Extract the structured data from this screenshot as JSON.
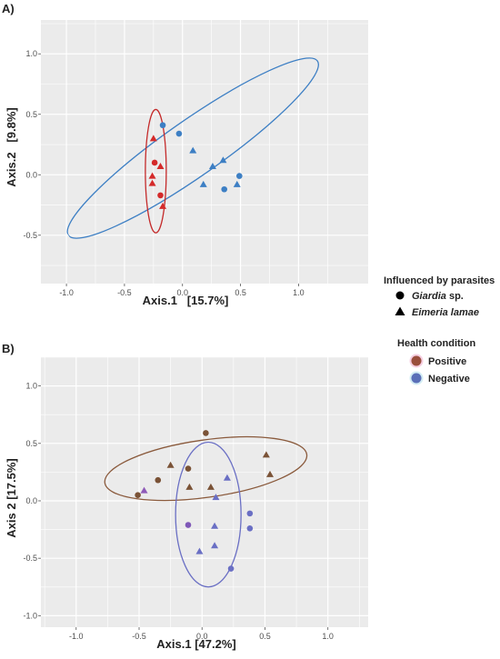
{
  "chart_data": [
    {
      "type": "scatter",
      "panel_label": "A)",
      "xlabel": "Axis.1   [15.7%]",
      "ylabel": "Axis.2   [9.8%]",
      "xlim": [
        -1.22,
        1.6
      ],
      "ylim": [
        -0.9,
        1.28
      ],
      "xticks": [
        -1.0,
        -0.5,
        0.0,
        0.5,
        1.0
      ],
      "yticks": [
        -0.5,
        0.0,
        0.5,
        1.0
      ],
      "xtick_labels": [
        "-1.0",
        "-0.5",
        "0.0",
        "0.5",
        "1.0"
      ],
      "ytick_labels": [
        "-0.5",
        "0.0",
        "0.5",
        "1.0"
      ],
      "grid": true,
      "points": [
        {
          "x": -0.17,
          "y": 0.41,
          "shape": "circle",
          "color": "#3d7fc4"
        },
        {
          "x": -0.03,
          "y": 0.34,
          "shape": "circle",
          "color": "#3d7fc4"
        },
        {
          "x": 0.09,
          "y": 0.2,
          "shape": "triangle",
          "color": "#3d7fc4"
        },
        {
          "x": 0.35,
          "y": 0.12,
          "shape": "triangle",
          "color": "#3d7fc4"
        },
        {
          "x": 0.26,
          "y": 0.07,
          "shape": "triangle",
          "color": "#3d7fc4"
        },
        {
          "x": 0.49,
          "y": -0.01,
          "shape": "circle",
          "color": "#3d7fc4"
        },
        {
          "x": 0.47,
          "y": -0.08,
          "shape": "triangle",
          "color": "#3d7fc4"
        },
        {
          "x": 0.18,
          "y": -0.08,
          "shape": "triangle",
          "color": "#3d7fc4"
        },
        {
          "x": 0.36,
          "y": -0.12,
          "shape": "circle",
          "color": "#3d7fc4"
        },
        {
          "x": -0.25,
          "y": 0.3,
          "shape": "triangle",
          "color": "#d42a2a"
        },
        {
          "x": -0.24,
          "y": 0.1,
          "shape": "circle",
          "color": "#d42a2a"
        },
        {
          "x": -0.19,
          "y": 0.07,
          "shape": "triangle",
          "color": "#d42a2a"
        },
        {
          "x": -0.26,
          "y": -0.01,
          "shape": "triangle",
          "color": "#d42a2a"
        },
        {
          "x": -0.26,
          "y": -0.07,
          "shape": "triangle",
          "color": "#d42a2a"
        },
        {
          "x": -0.19,
          "y": -0.17,
          "shape": "circle",
          "color": "#d42a2a"
        },
        {
          "x": -0.17,
          "y": -0.26,
          "shape": "triangle",
          "color": "#d42a2a"
        }
      ],
      "ellipses": [
        {
          "cx": 0.09,
          "cy": 0.22,
          "rx": 1.31,
          "ry": 0.23,
          "angle_deg": -35,
          "color": "#3d7fc4"
        },
        {
          "cx": -0.23,
          "cy": 0.03,
          "rx": 0.09,
          "ry": 0.51,
          "angle_deg": 0,
          "color": "#c42a2a"
        }
      ]
    },
    {
      "type": "scatter",
      "panel_label": "B)",
      "xlabel": "Axis.1 [47.2%]",
      "ylabel": "Axis 2 [17.5%]",
      "xlim": [
        -1.28,
        1.32
      ],
      "ylim": [
        -1.1,
        1.25
      ],
      "xticks": [
        -1.0,
        -0.5,
        0.0,
        0.5,
        1.0
      ],
      "yticks": [
        -1.0,
        -0.5,
        0.0,
        0.5,
        1.0
      ],
      "xtick_labels": [
        "-1.0",
        "-0.5",
        "0.0",
        "0.5",
        "1.0"
      ],
      "ytick_labels": [
        "-1.0",
        "-0.5",
        "0.0",
        "0.5",
        "1.0"
      ],
      "grid": true,
      "points": [
        {
          "x": 0.03,
          "y": 0.59,
          "shape": "circle",
          "color": "#7a5236"
        },
        {
          "x": 0.51,
          "y": 0.4,
          "shape": "triangle",
          "color": "#7a5236"
        },
        {
          "x": -0.25,
          "y": 0.31,
          "shape": "triangle",
          "color": "#7a5236"
        },
        {
          "x": -0.11,
          "y": 0.28,
          "shape": "circle",
          "color": "#7a5236"
        },
        {
          "x": 0.54,
          "y": 0.23,
          "shape": "triangle",
          "color": "#7a5236"
        },
        {
          "x": -0.35,
          "y": 0.18,
          "shape": "circle",
          "color": "#7a5236"
        },
        {
          "x": -0.1,
          "y": 0.12,
          "shape": "triangle",
          "color": "#7a5236"
        },
        {
          "x": 0.07,
          "y": 0.12,
          "shape": "triangle",
          "color": "#7a5236"
        },
        {
          "x": -0.51,
          "y": 0.05,
          "shape": "circle",
          "color": "#7a5236"
        },
        {
          "x": -0.46,
          "y": 0.09,
          "shape": "triangle",
          "color": "#8e5ab8"
        },
        {
          "x": 0.2,
          "y": 0.2,
          "shape": "triangle",
          "color": "#6a6fc4"
        },
        {
          "x": 0.11,
          "y": 0.03,
          "shape": "triangle",
          "color": "#6a6fc4"
        },
        {
          "x": 0.38,
          "y": -0.11,
          "shape": "circle",
          "color": "#6a6fc4"
        },
        {
          "x": -0.11,
          "y": -0.21,
          "shape": "circle",
          "color": "#7f58b8"
        },
        {
          "x": 0.1,
          "y": -0.22,
          "shape": "triangle",
          "color": "#6a6fc4"
        },
        {
          "x": 0.38,
          "y": -0.24,
          "shape": "circle",
          "color": "#6a6fc4"
        },
        {
          "x": 0.1,
          "y": -0.39,
          "shape": "triangle",
          "color": "#6a6fc4"
        },
        {
          "x": -0.02,
          "y": -0.44,
          "shape": "triangle",
          "color": "#6a6fc4"
        },
        {
          "x": 0.23,
          "y": -0.59,
          "shape": "circle",
          "color": "#6a6fc4"
        }
      ],
      "ellipses": [
        {
          "cx": 0.03,
          "cy": 0.28,
          "rx": 0.81,
          "ry": 0.25,
          "angle_deg": -8,
          "color": "#8a5a3c"
        },
        {
          "cx": 0.05,
          "cy": -0.12,
          "rx": 0.26,
          "ry": 0.63,
          "angle_deg": 0,
          "color": "#6a6fc4"
        }
      ]
    }
  ],
  "legends": {
    "parasites": {
      "title": "Influenced by parasites",
      "items": [
        {
          "label_italic": "Giardia",
          "label_rest": " sp.",
          "shape": "circle"
        },
        {
          "label_italic": "Eimeria lamae",
          "label_rest": "",
          "shape": "triangle"
        }
      ]
    },
    "health": {
      "title": "Health condition",
      "items": [
        {
          "label": "Positive",
          "color": "#9a4e3c"
        },
        {
          "label": "Negative",
          "color": "#5a6fb8"
        }
      ]
    }
  },
  "colors": {
    "panel_background": "#ebebeb",
    "grid_line": "#ffffff",
    "text": "#222222",
    "tick_text": "#4d4d4d"
  }
}
